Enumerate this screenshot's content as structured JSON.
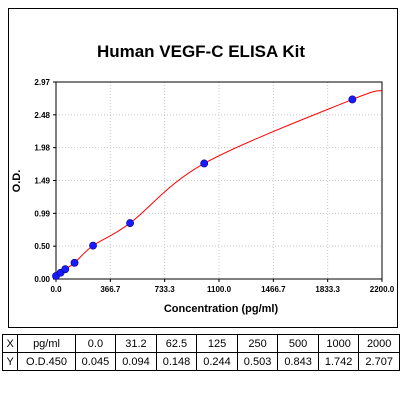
{
  "chart_data": {
    "type": "scatter",
    "title": "Human VEGF-C ELISA Kit",
    "xlabel": "Concentration (pg/ml)",
    "ylabel": "O.D.",
    "xlim": [
      0,
      2200
    ],
    "ylim": [
      0,
      2.97
    ],
    "x_ticks": [
      "0.0",
      "366.7",
      "733.3",
      "1100.0",
      "1466.7",
      "1833.3",
      "2200.0"
    ],
    "y_ticks": [
      "0.00",
      "0.50",
      "0.99",
      "1.49",
      "1.98",
      "2.48",
      "2.97"
    ],
    "grid": true,
    "point_color": "#1a1aff",
    "curve_color": "#ff0000",
    "series": [
      {
        "x": [
          0,
          31.2,
          62.5,
          125,
          250,
          500,
          1000,
          2000
        ],
        "y": [
          0.045,
          0.094,
          0.148,
          0.244,
          0.503,
          0.843,
          1.742,
          2.707
        ]
      }
    ]
  },
  "table": {
    "rows": [
      [
        "X",
        "pg/ml",
        "0.0",
        "31.2",
        "62.5",
        "125",
        "250",
        "500",
        "1000",
        "2000"
      ],
      [
        "Y",
        "O.D.450",
        "0.045",
        "0.094",
        "0.148",
        "0.244",
        "0.503",
        "0.843",
        "1.742",
        "2.707"
      ]
    ]
  }
}
